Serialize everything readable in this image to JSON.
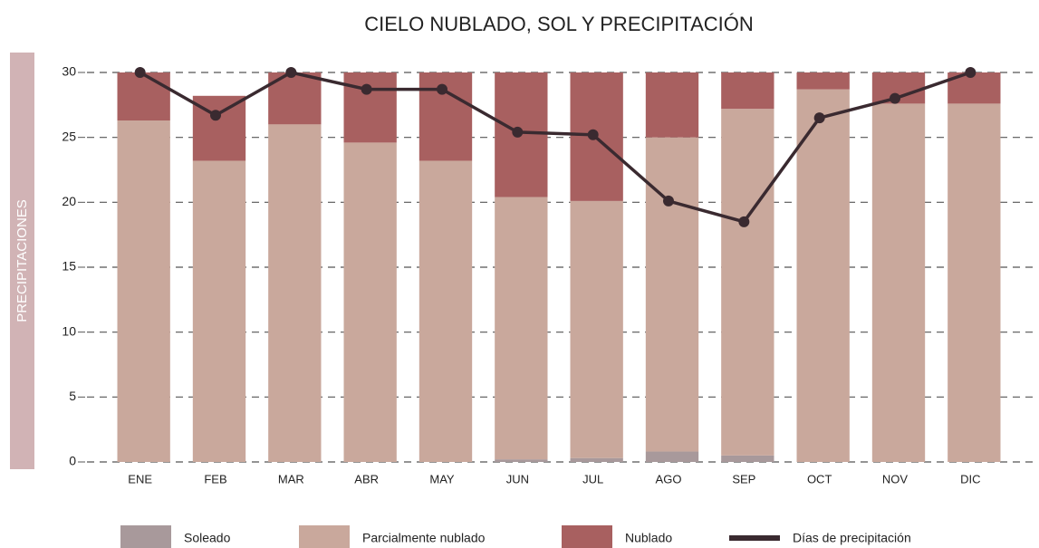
{
  "chart_data": {
    "type": "bar",
    "title": "CIELO NUBLADO, SOL Y PRECIPITACIÓN",
    "y_label": "PRECIPITACIONES",
    "categories": [
      "ENE",
      "FEB",
      "MAR",
      "ABR",
      "MAY",
      "JUN",
      "JUL",
      "AGO",
      "SEP",
      "OCT",
      "NOV",
      "DIC"
    ],
    "stacked": true,
    "series": [
      {
        "name": "Soleado",
        "color": "#a8999b",
        "values": [
          0,
          0,
          0,
          0,
          0,
          0.2,
          0.3,
          0.8,
          0.5,
          0,
          0,
          0
        ]
      },
      {
        "name": "Parcialmente nublado",
        "color": "#c9a89c",
        "values": [
          26.3,
          23.2,
          26.0,
          24.6,
          23.2,
          20.2,
          19.8,
          24.2,
          26.7,
          28.7,
          27.6,
          27.6
        ]
      },
      {
        "name": "Nublado",
        "color": "#a86060",
        "values": [
          3.7,
          5.0,
          4.0,
          5.4,
          6.8,
          9.6,
          9.9,
          5.0,
          2.8,
          1.3,
          2.4,
          2.4
        ]
      },
      {
        "name": "Días de precipitación",
        "type": "line",
        "color": "#3a2a30",
        "values": [
          30,
          26.7,
          30,
          28.7,
          28.7,
          25.4,
          25.2,
          20.1,
          18.5,
          26.5,
          28.0,
          30
        ]
      }
    ],
    "ylim": [
      0,
      30
    ],
    "yticks": [
      0,
      5,
      10,
      15,
      20,
      25,
      30
    ],
    "grid": true
  }
}
